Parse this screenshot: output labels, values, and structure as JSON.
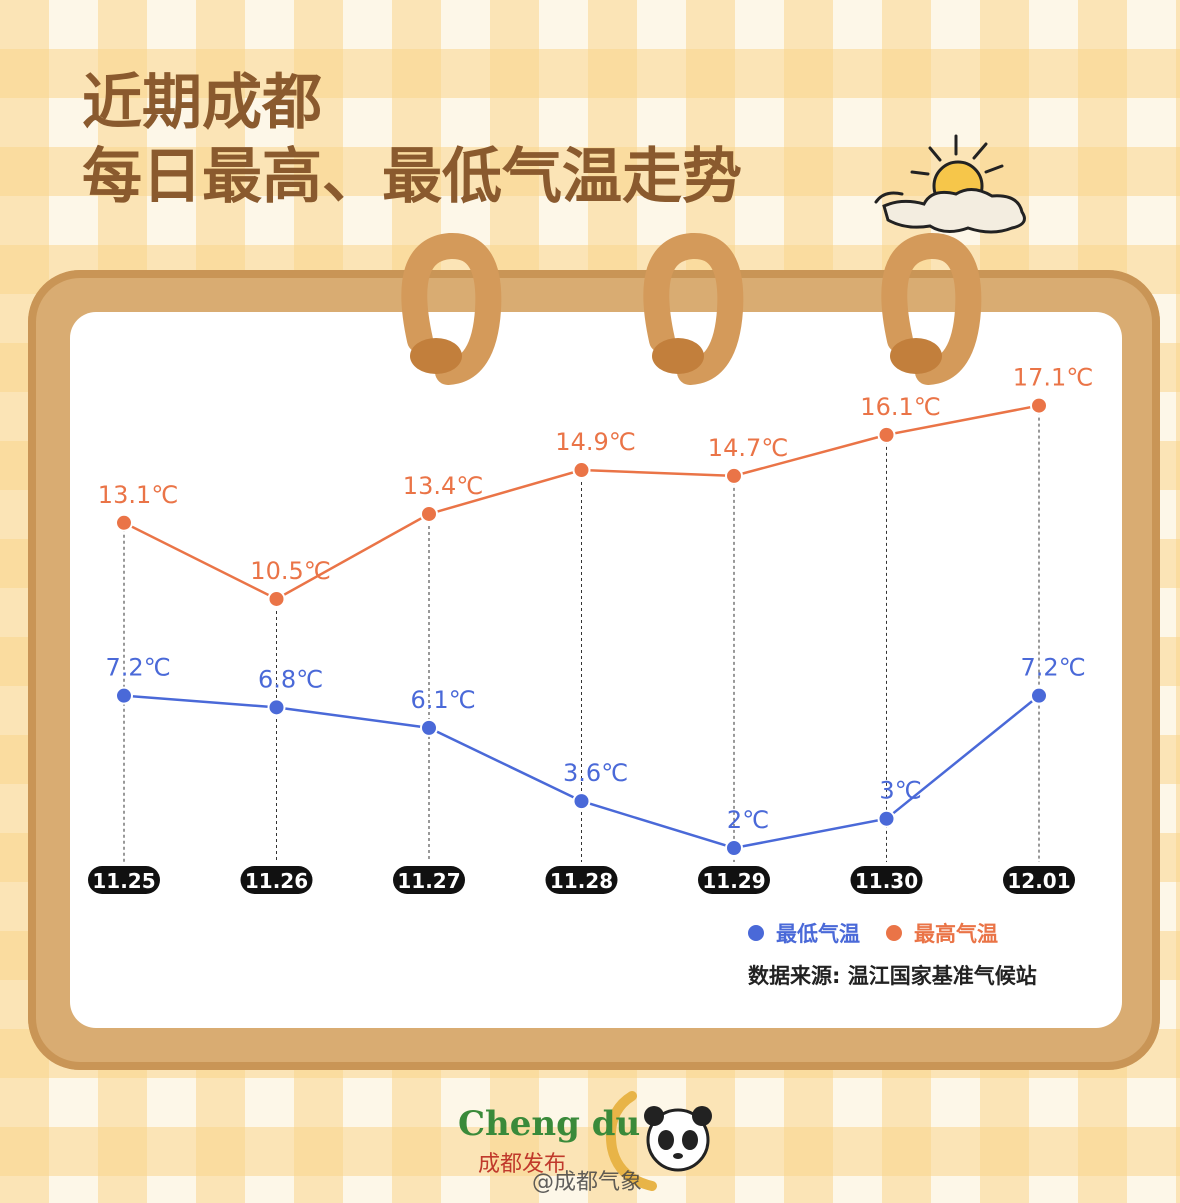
{
  "title": {
    "line1": "近期成都",
    "line2": "每日最高、最低气温走势"
  },
  "colors": {
    "low": "#4a69d8",
    "high": "#ea7447",
    "title": "#8a5a2e"
  },
  "chart_data": {
    "type": "line",
    "categories": [
      "11.25",
      "11.26",
      "11.27",
      "11.28",
      "11.29",
      "11.30",
      "12.01"
    ],
    "series": [
      {
        "name": "最高气温",
        "values": [
          13.1,
          10.5,
          13.4,
          14.9,
          14.7,
          16.1,
          17.1
        ],
        "labels": [
          "13.1℃",
          "10.5℃",
          "13.4℃",
          "14.9℃",
          "14.7℃",
          "16.1℃",
          "17.1℃"
        ]
      },
      {
        "name": "最低气温",
        "values": [
          7.2,
          6.8,
          6.1,
          3.6,
          2,
          3,
          7.2
        ],
        "labels": [
          "7.2℃",
          "6.8℃",
          "6.1℃",
          "3.6℃",
          "2℃",
          "3℃",
          "7.2℃"
        ]
      }
    ],
    "unit": "℃",
    "ylim": [
      2,
      17.1
    ],
    "grid": false,
    "legend_position": "bottom-right"
  },
  "legend": {
    "low_label": "最低气温",
    "high_label": "最高气温"
  },
  "source": "数据来源: 温江国家基准气候站",
  "footer": {
    "logo_text": "Cheng du",
    "logo_sub": "成都发布",
    "watermark": "@成都气象"
  }
}
